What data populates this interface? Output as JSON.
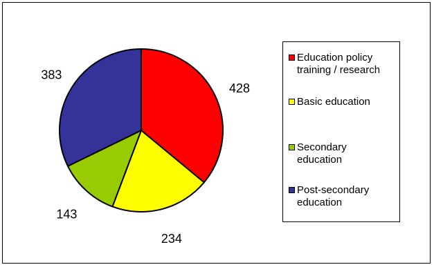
{
  "chart_data": {
    "type": "pie",
    "categories": [
      "Education policy training / research",
      "Basic education",
      "Secondary education",
      "Post-secondary education"
    ],
    "values": [
      428,
      234,
      143,
      383
    ],
    "data_labels": [
      "428",
      "234",
      "143",
      "383"
    ],
    "colors": [
      "#ff0000",
      "#ffff00",
      "#99cc00",
      "#333399"
    ],
    "legend_position": "right",
    "legend": [
      {
        "line1": "Education policy",
        "line2": "training / research"
      },
      {
        "line1": "Basic education",
        "line2": ""
      },
      {
        "line1": "Secondary",
        "line2": "education"
      },
      {
        "line1": "Post-secondary",
        "line2": "education"
      }
    ]
  }
}
